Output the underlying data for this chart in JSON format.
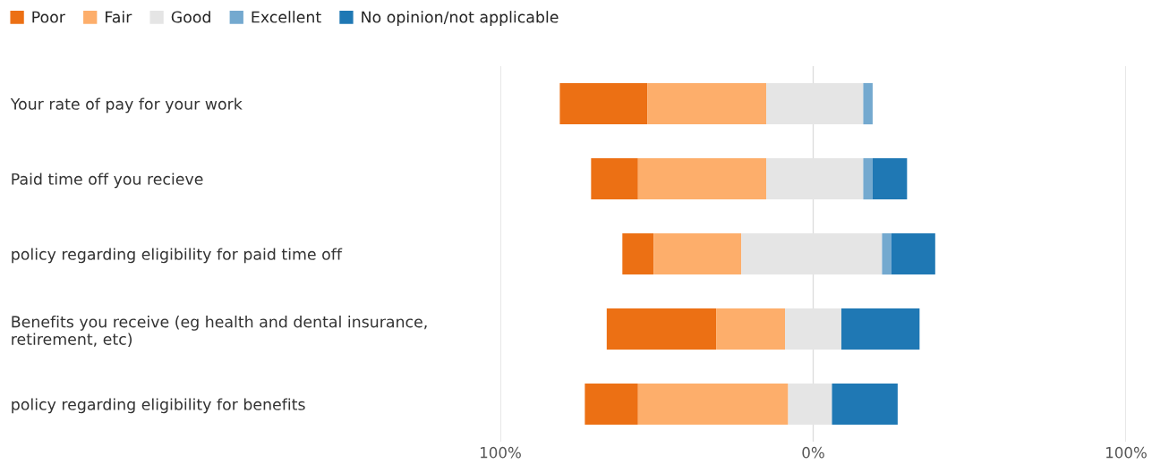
{
  "chart_data": {
    "type": "bar",
    "orientation": "horizontal",
    "categories": [
      "Your rate of pay for your work",
      "Paid time off you recieve",
      "policy regarding eligibility for paid time off",
      "Benefits you receive (eg health and dental insurance,\nretirement, etc)",
      "policy regarding eligibility for benefits"
    ],
    "series": [
      {
        "name": "Poor",
        "color": "#ec7014",
        "values": [
          28,
          15,
          10,
          35,
          17
        ],
        "base": [
          -81,
          -71,
          -61,
          -66,
          -73
        ]
      },
      {
        "name": "Fair",
        "color": "#fdae6b",
        "values": [
          38,
          41,
          28,
          22,
          48
        ],
        "base": [
          -53,
          -56,
          -51,
          -31,
          -56
        ]
      },
      {
        "name": "Good",
        "color": "#e5e5e5",
        "values": [
          31,
          31,
          45,
          18,
          14
        ],
        "base": [
          -15,
          -15,
          -23,
          -9,
          -8
        ]
      },
      {
        "name": "Excellent",
        "color": "#74a9cf",
        "values": [
          3,
          3,
          3,
          null,
          null
        ],
        "base": [
          16,
          16,
          22,
          null,
          null
        ]
      },
      {
        "name": "No opinion/not applicable",
        "color": "#1f78b4",
        "values": [
          null,
          11,
          14,
          25,
          21
        ],
        "base": [
          null,
          19,
          25,
          9,
          6
        ]
      }
    ],
    "xlim": [
      -100,
      100
    ],
    "xticks": [
      {
        "value": -100,
        "label": "100%"
      },
      {
        "value": 0,
        "label": "0%"
      },
      {
        "value": 100,
        "label": "100%"
      }
    ],
    "grid": "x",
    "legend": "top left"
  }
}
